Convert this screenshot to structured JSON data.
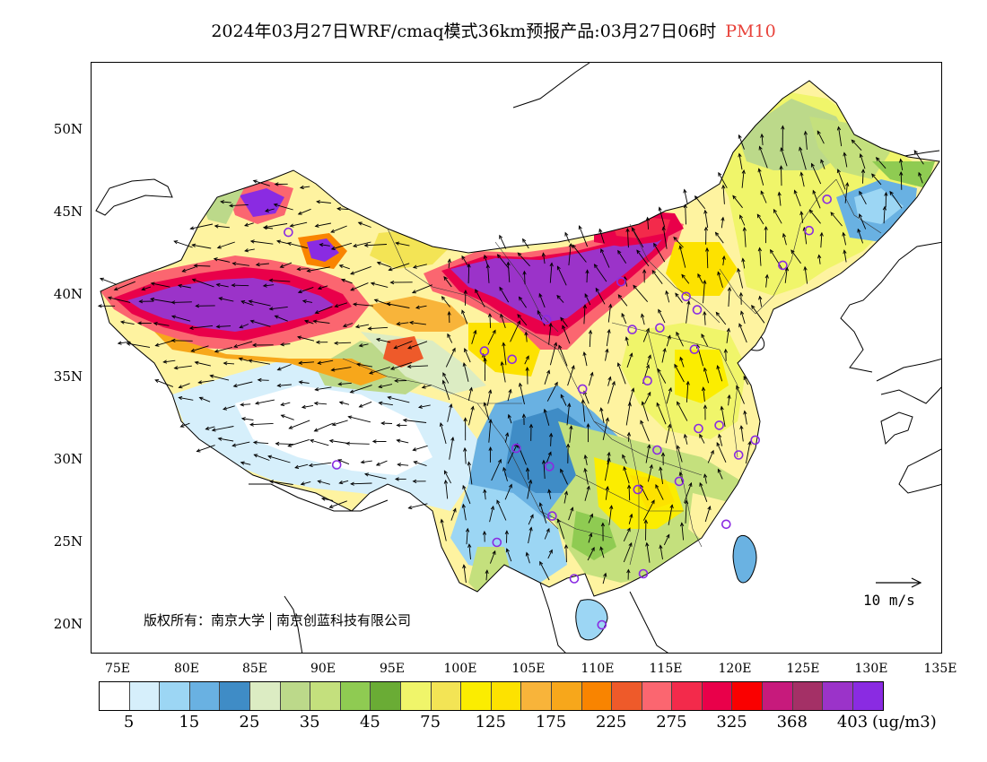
{
  "title": {
    "main": "2024年03月27日WRF/cmaq模式36km预报产品:03月27日06时",
    "species": "PM10",
    "species_color": "#e8423a"
  },
  "axes": {
    "lat_labels": [
      "50N",
      "45N",
      "40N",
      "35N",
      "30N",
      "25N",
      "20N"
    ],
    "lon_labels": [
      "75E",
      "80E",
      "85E",
      "90E",
      "95E",
      "100E",
      "105E",
      "110E",
      "115E",
      "120E",
      "125E",
      "130E",
      "135E"
    ]
  },
  "copyright": {
    "part1": "版权所有：南京大学",
    "part2": "南京创蓝科技有限公司"
  },
  "wind_reference": {
    "label": "10 m/s"
  },
  "colorbar": {
    "colors": [
      "#ffffff",
      "#d6effb",
      "#9cd6f4",
      "#69b1e2",
      "#3f8cc6",
      "#dcecc3",
      "#bcd98a",
      "#c4e07d",
      "#8fcb52",
      "#6aac35",
      "#f0f56a",
      "#f3e455",
      "#fbed00",
      "#fde200",
      "#f8b43a",
      "#f7a71b",
      "#f98400",
      "#ee5a2a",
      "#fb6670",
      "#f32a4b",
      "#e9004a",
      "#fa0000",
      "#c71a7c",
      "#a43066",
      "#9b33c9",
      "#8a2be2"
    ],
    "labels": [
      "5",
      "15",
      "25",
      "35",
      "45",
      "75",
      "125",
      "175",
      "225",
      "275",
      "325",
      "368",
      "403"
    ],
    "unit": "(ug/m3)"
  },
  "stations": [
    {
      "lon": 87.6,
      "lat": 43.8
    },
    {
      "lon": 126.6,
      "lat": 45.8
    },
    {
      "lon": 125.3,
      "lat": 43.9
    },
    {
      "lon": 123.4,
      "lat": 41.8
    },
    {
      "lon": 111.7,
      "lat": 40.8
    },
    {
      "lon": 116.4,
      "lat": 39.9
    },
    {
      "lon": 117.2,
      "lat": 39.1
    },
    {
      "lon": 112.5,
      "lat": 37.9
    },
    {
      "lon": 114.5,
      "lat": 38.0
    },
    {
      "lon": 117.0,
      "lat": 36.7
    },
    {
      "lon": 106.3,
      "lat": 38.5
    },
    {
      "lon": 101.8,
      "lat": 36.6
    },
    {
      "lon": 103.8,
      "lat": 36.1
    },
    {
      "lon": 108.9,
      "lat": 34.3
    },
    {
      "lon": 113.6,
      "lat": 34.8
    },
    {
      "lon": 117.3,
      "lat": 31.9
    },
    {
      "lon": 118.8,
      "lat": 32.1
    },
    {
      "lon": 121.4,
      "lat": 31.2
    },
    {
      "lon": 120.2,
      "lat": 30.3
    },
    {
      "lon": 114.3,
      "lat": 30.6
    },
    {
      "lon": 104.1,
      "lat": 30.7
    },
    {
      "lon": 106.5,
      "lat": 29.6
    },
    {
      "lon": 91.1,
      "lat": 29.7
    },
    {
      "lon": 112.9,
      "lat": 28.2
    },
    {
      "lon": 115.9,
      "lat": 28.7
    },
    {
      "lon": 119.3,
      "lat": 26.1
    },
    {
      "lon": 106.7,
      "lat": 26.6
    },
    {
      "lon": 102.7,
      "lat": 25.0
    },
    {
      "lon": 108.3,
      "lat": 22.8
    },
    {
      "lon": 113.3,
      "lat": 23.1
    },
    {
      "lon": 110.3,
      "lat": 20.0
    }
  ]
}
